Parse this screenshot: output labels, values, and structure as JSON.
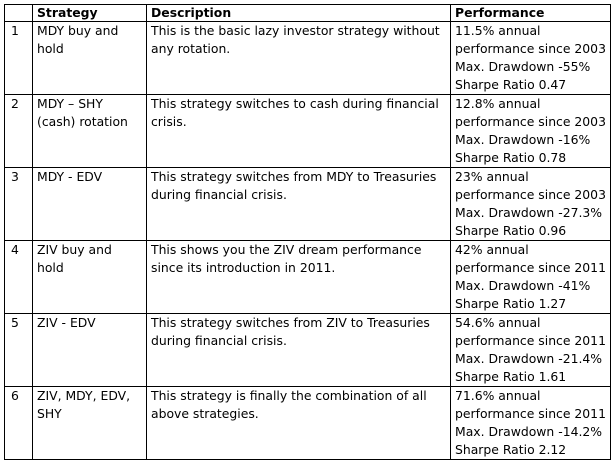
{
  "headers": [
    "",
    "Strategy",
    "Description",
    "Performance"
  ],
  "rows": [
    {
      "num": "1",
      "strategy": "MDY buy and hold",
      "description": "This is the basic lazy investor strategy without any rotation.",
      "performance": [
        "11.5% annual",
        "performance since 2003",
        "Max. Drawdown -55%",
        "Sharpe Ratio 0.47"
      ]
    },
    {
      "num": "2",
      "strategy": "MDY – SHY (cash) rotation",
      "description": "This strategy switches to cash during financial crisis.",
      "performance": [
        "12.8% annual",
        "performance since 2003",
        "Max. Drawdown -16%",
        "Sharpe Ratio 0.78"
      ]
    },
    {
      "num": "3",
      "strategy": "MDY - EDV",
      "description": "This strategy switches from MDY to Treasuries during financial crisis.",
      "performance": [
        "23% annual",
        "performance since 2003",
        "Max. Drawdown -27.3%",
        "Sharpe Ratio 0.96"
      ]
    },
    {
      "num": "4",
      "strategy": "ZIV buy and hold",
      "description": "This shows you the ZIV dream performance since its introduction in 2011.",
      "performance": [
        "42% annual",
        "performance since 2011",
        "Max. Drawdown -41%",
        "Sharpe Ratio 1.27"
      ]
    },
    {
      "num": "5",
      "strategy": "ZIV - EDV",
      "description": "This strategy switches from ZIV to Treasuries during financial crisis.",
      "performance": [
        "54.6% annual",
        "performance since 2011",
        "Max. Drawdown -21.4%",
        "Sharpe Ratio 1.61"
      ]
    },
    {
      "num": "6",
      "strategy": "ZIV, MDY, EDV, SHY",
      "description": "This strategy is finally the combination of all above strategies.",
      "performance": [
        "71.6% annual",
        "performance since 2011",
        "Max. Drawdown -14.2%",
        "Sharpe Ratio 2.12"
      ]
    }
  ]
}
